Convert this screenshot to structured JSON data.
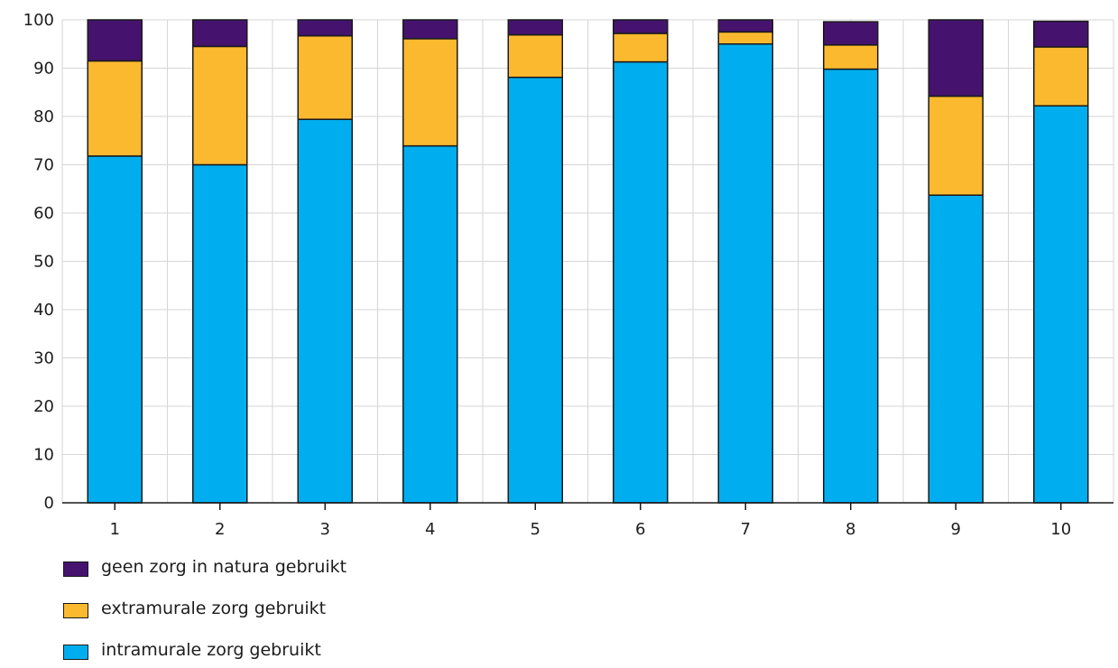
{
  "chart_data": {
    "type": "bar",
    "stacked": true,
    "categories": [
      "1",
      "2",
      "3",
      "4",
      "5",
      "6",
      "7",
      "8",
      "9",
      "10"
    ],
    "series": [
      {
        "name": "intramurale zorg gebruikt",
        "color": "#00AEEF",
        "values": [
          71.8,
          70.0,
          79.4,
          73.9,
          88.1,
          91.3,
          95.0,
          89.8,
          63.7,
          82.2
        ]
      },
      {
        "name": "extramurale zorg gebruikt",
        "color": "#FBB92F",
        "values": [
          19.7,
          24.5,
          17.3,
          22.2,
          8.8,
          5.9,
          2.5,
          5.0,
          20.5,
          12.2
        ]
      },
      {
        "name": "geen zorg in natura gebruikt",
        "color": "#45136E",
        "values": [
          8.5,
          5.5,
          3.3,
          3.9,
          3.1,
          2.8,
          2.5,
          4.8,
          15.8,
          5.3
        ]
      }
    ],
    "ylim": [
      0,
      100
    ],
    "yticks": [
      "0",
      "10",
      "20",
      "30",
      "40",
      "50",
      "60",
      "70",
      "80",
      "90",
      "100"
    ],
    "grid": true,
    "legend_position": "bottom-left"
  },
  "legend": {
    "items": [
      {
        "label": "geen zorg in natura gebruikt",
        "color": "#45136E"
      },
      {
        "label": "extramurale zorg gebruikt",
        "color": "#FBB92F"
      },
      {
        "label": "intramurale zorg gebruikt",
        "color": "#00AEEF"
      }
    ]
  }
}
